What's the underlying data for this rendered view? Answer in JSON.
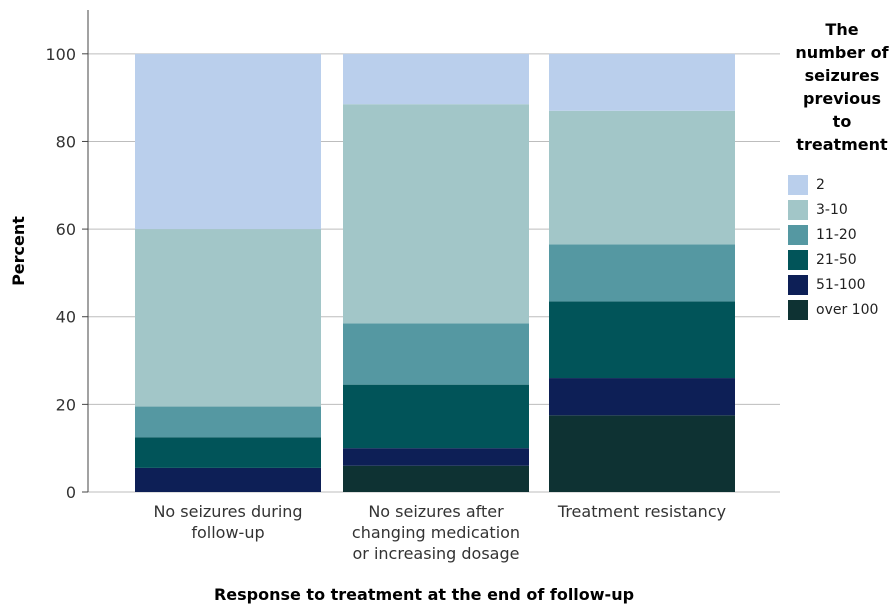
{
  "chart_data": {
    "type": "bar",
    "stacked": true,
    "title": "",
    "xlabel": "Response to treatment at the end of follow-up",
    "ylabel": "Percent",
    "ylim": [
      0,
      110
    ],
    "yticks": [
      0,
      20,
      40,
      60,
      80,
      100
    ],
    "grid": true,
    "legend_position": "right",
    "legend_title": [
      "The",
      "number of",
      "seizures",
      "previous",
      "to",
      "treatment"
    ],
    "categories": [
      [
        "No seizures during",
        "follow-up"
      ],
      [
        "No seizures after",
        "changing medication",
        "or increasing dosage"
      ],
      [
        "Treatment resistancy"
      ]
    ],
    "series": [
      {
        "name": "over 100",
        "color": "#0e3233",
        "values": [
          0,
          6,
          17.5
        ]
      },
      {
        "name": "51-100",
        "color": "#0d1f56",
        "values": [
          5.5,
          4,
          8.5
        ]
      },
      {
        "name": "21-50",
        "color": "#015459",
        "values": [
          7,
          14.5,
          17.5
        ]
      },
      {
        "name": "11-20",
        "color": "#5598a2",
        "values": [
          7,
          14,
          13
        ]
      },
      {
        "name": "3-10",
        "color": "#a2c6c8",
        "values": [
          40.5,
          50,
          30.5
        ]
      },
      {
        "name": "2",
        "color": "#bacfec",
        "values": [
          40,
          11.5,
          13
        ]
      }
    ]
  }
}
